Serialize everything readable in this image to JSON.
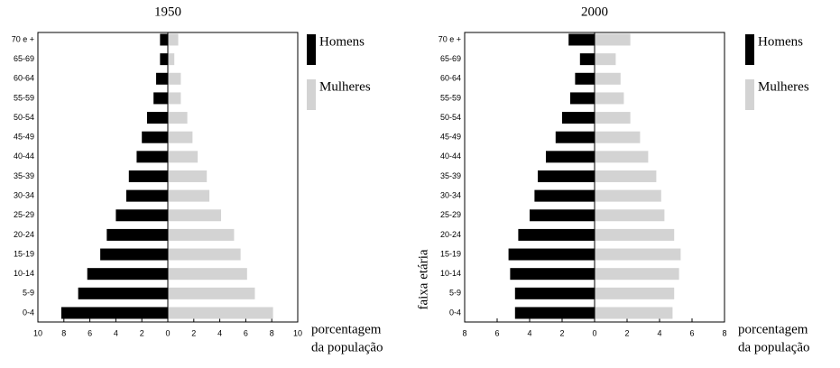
{
  "chart_data": [
    {
      "type": "pyramid",
      "title": "1950",
      "categories": [
        "0-4",
        "5-9",
        "10-14",
        "15-19",
        "20-24",
        "25-29",
        "30-34",
        "35-39",
        "40-44",
        "45-49",
        "50-54",
        "55-59",
        "60-64",
        "65-69",
        "70 e +"
      ],
      "series": [
        {
          "name": "Homens",
          "color": "#000000",
          "side": "left",
          "values": [
            8.2,
            6.9,
            6.2,
            5.2,
            4.7,
            4.0,
            3.2,
            3.0,
            2.4,
            2.0,
            1.6,
            1.1,
            0.9,
            0.6,
            0.6
          ]
        },
        {
          "name": "Mulheres",
          "color": "#d3d3d3",
          "side": "right",
          "values": [
            8.1,
            6.7,
            6.1,
            5.6,
            5.1,
            4.1,
            3.2,
            3.0,
            2.3,
            1.9,
            1.5,
            1.0,
            1.0,
            0.5,
            0.8
          ]
        }
      ],
      "xlim": [
        -10,
        10
      ],
      "xticks": [
        {
          "value": -10,
          "label": "10"
        },
        {
          "value": -8,
          "label": "8"
        },
        {
          "value": -6,
          "label": "6"
        },
        {
          "value": -4,
          "label": "4"
        },
        {
          "value": -2,
          "label": "2"
        },
        0,
        2,
        4,
        6,
        8,
        10
      ],
      "xlabel": [
        "porcentagem",
        "da população"
      ]
    },
    {
      "type": "pyramid",
      "title": "2000",
      "categories": [
        "0-4",
        "5-9",
        "10-14",
        "15-19",
        "20-24",
        "25-29",
        "30-34",
        "35-39",
        "40-44",
        "45-49",
        "50-54",
        "55-59",
        "60-64",
        "65-69",
        "70 e +"
      ],
      "series": [
        {
          "name": "Homens",
          "color": "#000000",
          "side": "left",
          "values": [
            4.9,
            4.9,
            5.2,
            5.3,
            4.7,
            4.0,
            3.7,
            3.5,
            3.0,
            2.4,
            2.0,
            1.5,
            1.2,
            0.9,
            1.6
          ]
        },
        {
          "name": "Mulheres",
          "color": "#d3d3d3",
          "side": "right",
          "values": [
            4.8,
            4.9,
            5.2,
            5.3,
            4.9,
            4.3,
            4.1,
            3.8,
            3.3,
            2.8,
            2.2,
            1.8,
            1.6,
            1.3,
            2.2
          ]
        }
      ],
      "xlim": [
        -8,
        8
      ],
      "xticks": [
        {
          "value": -8,
          "label": "8"
        },
        {
          "value": -6,
          "label": "6"
        },
        {
          "value": -4,
          "label": "4"
        },
        {
          "value": -2,
          "label": "2"
        },
        0,
        2,
        4,
        6,
        8
      ],
      "xlabel": [
        "porcentagem",
        "da população"
      ],
      "ylabel": "faixa etária"
    }
  ]
}
